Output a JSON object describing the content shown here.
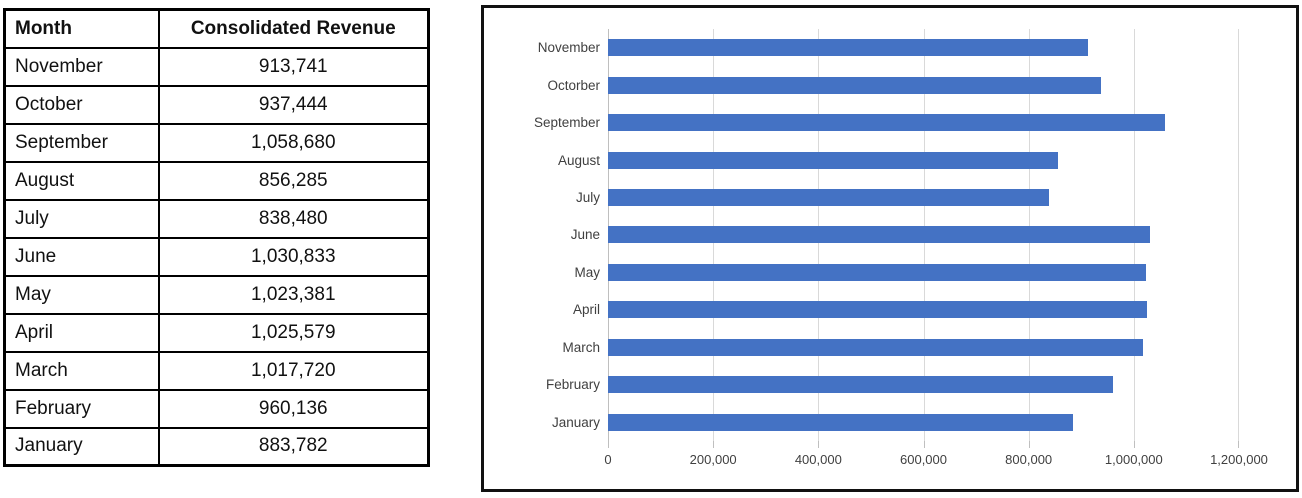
{
  "table": {
    "headers": {
      "month": "Month",
      "revenue": "Consolidated Revenue"
    },
    "rows": [
      {
        "month": "November",
        "revenue": "913,741"
      },
      {
        "month": "October",
        "revenue": "937,444"
      },
      {
        "month": "September",
        "revenue": "1,058,680"
      },
      {
        "month": "August",
        "revenue": "856,285"
      },
      {
        "month": "July",
        "revenue": "838,480"
      },
      {
        "month": "June",
        "revenue": "1,030,833"
      },
      {
        "month": "May",
        "revenue": "1,023,381"
      },
      {
        "month": "April",
        "revenue": "1,025,579"
      },
      {
        "month": "March",
        "revenue": "1,017,720"
      },
      {
        "month": "February",
        "revenue": "960,136"
      },
      {
        "month": "January",
        "revenue": "883,782"
      }
    ]
  },
  "chart_data": {
    "type": "bar",
    "orientation": "horizontal",
    "title": "",
    "xlabel": "",
    "ylabel": "",
    "categories": [
      "November",
      "Octorber",
      "September",
      "August",
      "July",
      "June",
      "May",
      "April",
      "March",
      "February",
      "January"
    ],
    "values": [
      913741,
      937444,
      1058680,
      856285,
      838480,
      1030833,
      1023381,
      1025579,
      1017720,
      960136,
      883782
    ],
    "xlim": [
      0,
      1200000
    ],
    "x_tick_labels": [
      "0",
      "200,000",
      "400,000",
      "600,000",
      "800,000",
      "1,000,000",
      "1,200,000"
    ],
    "grid": true,
    "legend": "none",
    "bar_color": "#4472C4",
    "gridline_color": "#d9d9d9",
    "axis_line_color": "#bfbfbf",
    "label_color": "#404040",
    "border_color": "#111111"
  }
}
